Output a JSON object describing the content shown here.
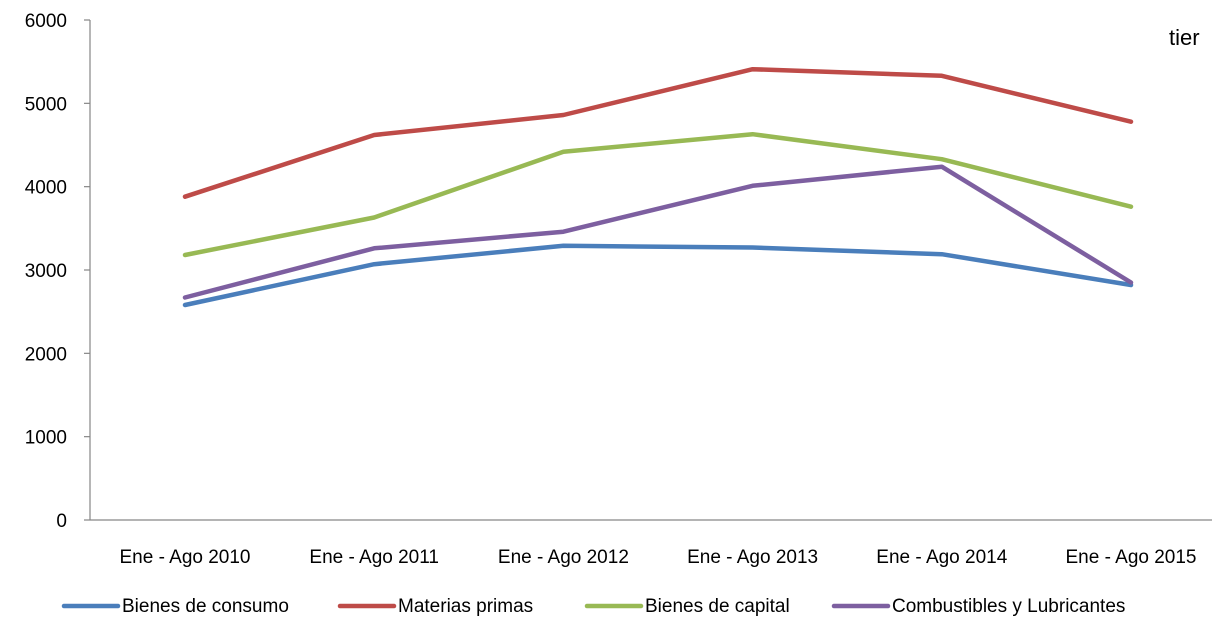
{
  "stray_text": "tier",
  "chart_data": {
    "type": "line",
    "title": "",
    "xlabel": "",
    "ylabel": "",
    "ylim": [
      0,
      6000
    ],
    "yticks": [
      0,
      1000,
      2000,
      3000,
      4000,
      5000,
      6000
    ],
    "grid": false,
    "legend_position": "bottom",
    "categories": [
      "Ene - Ago 2010",
      "Ene - Ago 2011",
      "Ene - Ago 2012",
      "Ene - Ago 2013",
      "Ene - Ago 2014",
      "Ene - Ago 2015"
    ],
    "series": [
      {
        "name": "Bienes de consumo",
        "color": "#4A7EBB",
        "values": [
          2580,
          3070,
          3290,
          3270,
          3190,
          2820
        ]
      },
      {
        "name": "Materias primas",
        "color": "#BE4B48",
        "values": [
          3880,
          4620,
          4860,
          5410,
          5330,
          4780
        ]
      },
      {
        "name": "Bienes de capital",
        "color": "#98B954",
        "values": [
          3180,
          3630,
          4420,
          4630,
          4330,
          3760
        ]
      },
      {
        "name": "Combustibles y Lubricantes",
        "color": "#7D5FA0",
        "values": [
          2670,
          3260,
          3460,
          4010,
          4240,
          2850
        ]
      }
    ]
  }
}
